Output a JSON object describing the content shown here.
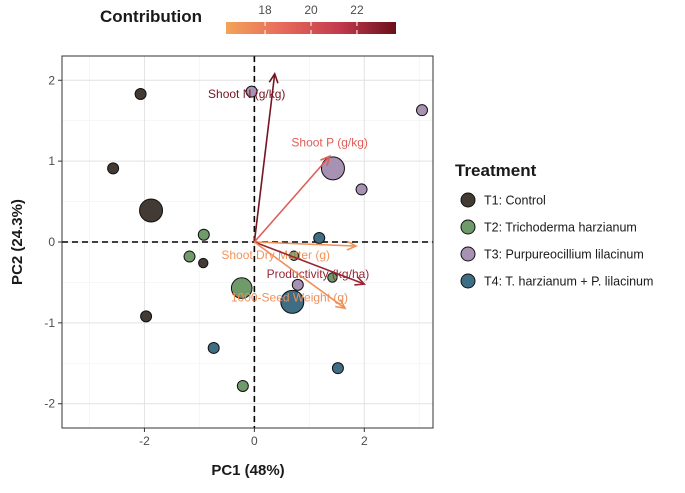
{
  "chart_data": {
    "type": "scatter",
    "subtype": "pca-biplot",
    "xlabel": "PC1 (48%)",
    "ylabel": "PC2 (24.3%)",
    "xlim": [
      -3.5,
      3.25
    ],
    "ylim": [
      -2.3,
      2.3
    ],
    "x_ticks": [
      -2,
      0,
      2
    ],
    "y_ticks": [
      -2,
      -1,
      0,
      1,
      2
    ],
    "grid": true,
    "reference_lines": {
      "x": 0,
      "y": 0,
      "style": "dashed"
    },
    "legend": {
      "title": "Treatment",
      "placement": "right",
      "items": [
        {
          "key": "T1",
          "label": "T1: Control",
          "color": "#433a34"
        },
        {
          "key": "T2",
          "label": "T2: Trichoderma harzianum",
          "color": "#6f9a6a"
        },
        {
          "key": "T3",
          "label": "T3: Purpureocillium lilacinum",
          "color": "#a892b4"
        },
        {
          "key": "T4",
          "label": "T4: T. harzianum + P. lilacinum",
          "color": "#3e6d84"
        }
      ]
    },
    "colorbar": {
      "title": "Contribution",
      "range": [
        16.3,
        23.7
      ],
      "ticks": [
        18,
        20,
        22
      ],
      "colors": [
        "#f4a259",
        "#e66a5c",
        "#c23a4d",
        "#6b0f1a"
      ]
    },
    "points": [
      {
        "group": "T1",
        "x": -2.07,
        "y": 1.83,
        "size": 2.0
      },
      {
        "group": "T1",
        "x": -2.57,
        "y": 0.91,
        "size": 2.0
      },
      {
        "group": "T1",
        "x": -1.88,
        "y": 0.39,
        "size": 5.0
      },
      {
        "group": "T1",
        "x": -0.93,
        "y": -0.26,
        "size": 1.6
      },
      {
        "group": "T1",
        "x": -1.97,
        "y": -0.92,
        "size": 2.0
      },
      {
        "group": "T2",
        "x": -0.92,
        "y": 0.09,
        "size": 2.0
      },
      {
        "group": "T2",
        "x": -1.18,
        "y": -0.18,
        "size": 2.0
      },
      {
        "group": "T2",
        "x": -0.23,
        "y": -0.57,
        "size": 4.4
      },
      {
        "group": "T2",
        "x": 0.72,
        "y": -0.17,
        "size": 1.6
      },
      {
        "group": "T2",
        "x": 1.42,
        "y": -0.44,
        "size": 1.6
      },
      {
        "group": "T2",
        "x": -0.21,
        "y": -1.78,
        "size": 2.0
      },
      {
        "group": "T3",
        "x": -0.05,
        "y": 1.86,
        "size": 2.0
      },
      {
        "group": "T3",
        "x": 1.43,
        "y": 0.91,
        "size": 5.0
      },
      {
        "group": "T3",
        "x": 1.95,
        "y": 0.65,
        "size": 2.0
      },
      {
        "group": "T3",
        "x": 3.05,
        "y": 1.63,
        "size": 2.0
      },
      {
        "group": "T3",
        "x": 0.79,
        "y": -0.53,
        "size": 2.0
      },
      {
        "group": "T4",
        "x": 1.18,
        "y": 0.05,
        "size": 2.0
      },
      {
        "group": "T4",
        "x": 0.69,
        "y": -0.74,
        "size": 5.0
      },
      {
        "group": "T4",
        "x": -0.74,
        "y": -1.31,
        "size": 2.0
      },
      {
        "group": "T4",
        "x": 1.52,
        "y": -1.56,
        "size": 2.0
      }
    ],
    "loadings": [
      {
        "label": "Shoot N (g/kg)",
        "x": 0.37,
        "y": 2.08,
        "contribution": 23.4
      },
      {
        "label": "Shoot P (g/kg)",
        "x": 1.37,
        "y": 1.06,
        "contribution": 19.4
      },
      {
        "label": "Shoot Dry Matter (g)",
        "x": 1.85,
        "y": -0.05,
        "contribution": 16.9
      },
      {
        "label": "Productivity (kg/ha)",
        "x": 2.0,
        "y": -0.52,
        "contribution": 22.4
      },
      {
        "label": "1000-Seed Weight (g)",
        "x": 1.65,
        "y": -0.82,
        "contribution": 17.1
      }
    ]
  }
}
